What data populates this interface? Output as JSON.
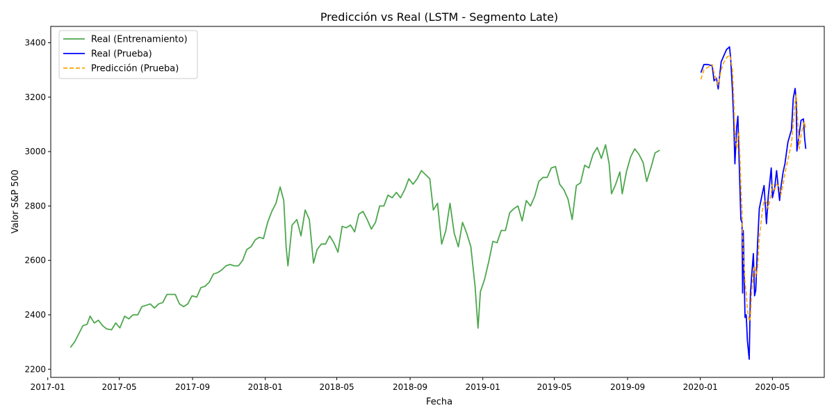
{
  "chart_data": {
    "type": "line",
    "title": "Predicción vs Real (LSTM - Segmento Late)",
    "xlabel": "Fecha",
    "ylabel": "Valor S&P 500",
    "xlim": [
      "2017-01-06",
      "2020-07-27"
    ],
    "ylim": [
      2170,
      3460
    ],
    "grid": false,
    "legend_position": "top-left",
    "x_ticks": [
      {
        "date": "2017-01-01",
        "label": "2017-01"
      },
      {
        "date": "2017-05-01",
        "label": "2017-05"
      },
      {
        "date": "2017-09-01",
        "label": "2017-09"
      },
      {
        "date": "2018-01-01",
        "label": "2018-01"
      },
      {
        "date": "2018-05-01",
        "label": "2018-05"
      },
      {
        "date": "2018-09-01",
        "label": "2018-09"
      },
      {
        "date": "2019-01-01",
        "label": "2019-01"
      },
      {
        "date": "2019-05-01",
        "label": "2019-05"
      },
      {
        "date": "2019-09-01",
        "label": "2019-09"
      },
      {
        "date": "2020-01-01",
        "label": "2020-01"
      },
      {
        "date": "2020-05-01",
        "label": "2020-05"
      }
    ],
    "y_ticks": [
      2200,
      2400,
      2600,
      2800,
      3000,
      3200,
      3400
    ],
    "series": [
      {
        "name": "Real (Entrenamiento)",
        "color": "#4ca64c",
        "dash": "solid",
        "points": [
          [
            "2017-02-08",
            2280
          ],
          [
            "2017-02-15",
            2300
          ],
          [
            "2017-02-22",
            2330
          ],
          [
            "2017-03-01",
            2360
          ],
          [
            "2017-03-08",
            2365
          ],
          [
            "2017-03-13",
            2395
          ],
          [
            "2017-03-20",
            2370
          ],
          [
            "2017-03-27",
            2380
          ],
          [
            "2017-04-03",
            2360
          ],
          [
            "2017-04-10",
            2348
          ],
          [
            "2017-04-18",
            2345
          ],
          [
            "2017-04-25",
            2370
          ],
          [
            "2017-05-02",
            2352
          ],
          [
            "2017-05-10",
            2395
          ],
          [
            "2017-05-17",
            2385
          ],
          [
            "2017-05-24",
            2400
          ],
          [
            "2017-06-01",
            2400
          ],
          [
            "2017-06-08",
            2430
          ],
          [
            "2017-06-15",
            2435
          ],
          [
            "2017-06-22",
            2440
          ],
          [
            "2017-06-29",
            2425
          ],
          [
            "2017-07-06",
            2440
          ],
          [
            "2017-07-13",
            2445
          ],
          [
            "2017-07-20",
            2475
          ],
          [
            "2017-07-27",
            2475
          ],
          [
            "2017-08-03",
            2475
          ],
          [
            "2017-08-10",
            2440
          ],
          [
            "2017-08-17",
            2430
          ],
          [
            "2017-08-24",
            2440
          ],
          [
            "2017-08-31",
            2470
          ],
          [
            "2017-09-08",
            2465
          ],
          [
            "2017-09-15",
            2500
          ],
          [
            "2017-09-22",
            2505
          ],
          [
            "2017-09-29",
            2520
          ],
          [
            "2017-10-06",
            2550
          ],
          [
            "2017-10-13",
            2555
          ],
          [
            "2017-10-20",
            2565
          ],
          [
            "2017-10-27",
            2580
          ],
          [
            "2017-11-03",
            2585
          ],
          [
            "2017-11-10",
            2580
          ],
          [
            "2017-11-17",
            2580
          ],
          [
            "2017-11-24",
            2600
          ],
          [
            "2017-12-01",
            2640
          ],
          [
            "2017-12-08",
            2650
          ],
          [
            "2017-12-15",
            2675
          ],
          [
            "2017-12-22",
            2685
          ],
          [
            "2017-12-29",
            2680
          ],
          [
            "2018-01-05",
            2740
          ],
          [
            "2018-01-12",
            2780
          ],
          [
            "2018-01-19",
            2810
          ],
          [
            "2018-01-26",
            2870
          ],
          [
            "2018-02-01",
            2820
          ],
          [
            "2018-02-05",
            2650
          ],
          [
            "2018-02-08",
            2580
          ],
          [
            "2018-02-15",
            2730
          ],
          [
            "2018-02-23",
            2750
          ],
          [
            "2018-03-02",
            2690
          ],
          [
            "2018-03-09",
            2785
          ],
          [
            "2018-03-16",
            2750
          ],
          [
            "2018-03-23",
            2590
          ],
          [
            "2018-03-29",
            2640
          ],
          [
            "2018-04-05",
            2660
          ],
          [
            "2018-04-12",
            2660
          ],
          [
            "2018-04-19",
            2690
          ],
          [
            "2018-04-26",
            2665
          ],
          [
            "2018-05-03",
            2630
          ],
          [
            "2018-05-10",
            2725
          ],
          [
            "2018-05-17",
            2720
          ],
          [
            "2018-05-24",
            2730
          ],
          [
            "2018-05-31",
            2705
          ],
          [
            "2018-06-07",
            2770
          ],
          [
            "2018-06-14",
            2780
          ],
          [
            "2018-06-21",
            2750
          ],
          [
            "2018-06-28",
            2715
          ],
          [
            "2018-07-05",
            2740
          ],
          [
            "2018-07-12",
            2800
          ],
          [
            "2018-07-19",
            2800
          ],
          [
            "2018-07-26",
            2840
          ],
          [
            "2018-08-02",
            2830
          ],
          [
            "2018-08-09",
            2850
          ],
          [
            "2018-08-16",
            2830
          ],
          [
            "2018-08-23",
            2860
          ],
          [
            "2018-08-30",
            2900
          ],
          [
            "2018-09-06",
            2880
          ],
          [
            "2018-09-13",
            2900
          ],
          [
            "2018-09-20",
            2930
          ],
          [
            "2018-09-27",
            2915
          ],
          [
            "2018-10-04",
            2900
          ],
          [
            "2018-10-10",
            2785
          ],
          [
            "2018-10-17",
            2810
          ],
          [
            "2018-10-24",
            2660
          ],
          [
            "2018-10-31",
            2710
          ],
          [
            "2018-11-07",
            2810
          ],
          [
            "2018-11-14",
            2700
          ],
          [
            "2018-11-21",
            2650
          ],
          [
            "2018-11-28",
            2740
          ],
          [
            "2018-12-05",
            2700
          ],
          [
            "2018-12-12",
            2650
          ],
          [
            "2018-12-19",
            2506
          ],
          [
            "2018-12-24",
            2351
          ],
          [
            "2018-12-28",
            2485
          ],
          [
            "2019-01-04",
            2530
          ],
          [
            "2019-01-11",
            2595
          ],
          [
            "2019-01-18",
            2670
          ],
          [
            "2019-01-25",
            2665
          ],
          [
            "2019-02-01",
            2710
          ],
          [
            "2019-02-08",
            2710
          ],
          [
            "2019-02-15",
            2775
          ],
          [
            "2019-02-22",
            2790
          ],
          [
            "2019-03-01",
            2800
          ],
          [
            "2019-03-08",
            2745
          ],
          [
            "2019-03-15",
            2820
          ],
          [
            "2019-03-22",
            2800
          ],
          [
            "2019-03-29",
            2835
          ],
          [
            "2019-04-05",
            2890
          ],
          [
            "2019-04-12",
            2905
          ],
          [
            "2019-04-19",
            2905
          ],
          [
            "2019-04-26",
            2940
          ],
          [
            "2019-05-03",
            2945
          ],
          [
            "2019-05-10",
            2880
          ],
          [
            "2019-05-17",
            2860
          ],
          [
            "2019-05-24",
            2825
          ],
          [
            "2019-05-31",
            2750
          ],
          [
            "2019-06-07",
            2875
          ],
          [
            "2019-06-14",
            2885
          ],
          [
            "2019-06-21",
            2950
          ],
          [
            "2019-06-28",
            2940
          ],
          [
            "2019-07-05",
            2990
          ],
          [
            "2019-07-12",
            3015
          ],
          [
            "2019-07-19",
            2975
          ],
          [
            "2019-07-26",
            3025
          ],
          [
            "2019-08-01",
            2955
          ],
          [
            "2019-08-05",
            2845
          ],
          [
            "2019-08-12",
            2880
          ],
          [
            "2019-08-19",
            2925
          ],
          [
            "2019-08-23",
            2845
          ],
          [
            "2019-08-30",
            2925
          ],
          [
            "2019-09-06",
            2980
          ],
          [
            "2019-09-13",
            3010
          ],
          [
            "2019-09-20",
            2990
          ],
          [
            "2019-09-27",
            2960
          ],
          [
            "2019-10-03",
            2890
          ],
          [
            "2019-10-10",
            2940
          ],
          [
            "2019-10-17",
            2995
          ],
          [
            "2019-10-25",
            3005
          ]
        ]
      },
      {
        "name": "Real (Prueba)",
        "color": "#0000ff",
        "dash": "solid",
        "points": [
          [
            "2020-01-02",
            3290
          ],
          [
            "2020-01-07",
            3320
          ],
          [
            "2020-01-14",
            3320
          ],
          [
            "2020-01-21",
            3315
          ],
          [
            "2020-01-24",
            3260
          ],
          [
            "2020-01-28",
            3270
          ],
          [
            "2020-01-31",
            3230
          ],
          [
            "2020-02-05",
            3330
          ],
          [
            "2020-02-10",
            3355
          ],
          [
            "2020-02-14",
            3375
          ],
          [
            "2020-02-19",
            3385
          ],
          [
            "2020-02-21",
            3340
          ],
          [
            "2020-02-24",
            3225
          ],
          [
            "2020-02-26",
            3115
          ],
          [
            "2020-02-28",
            2955
          ],
          [
            "2020-03-02",
            3090
          ],
          [
            "2020-03-04",
            3130
          ],
          [
            "2020-03-06",
            2975
          ],
          [
            "2020-03-09",
            2750
          ],
          [
            "2020-03-11",
            2740
          ],
          [
            "2020-03-12",
            2480
          ],
          [
            "2020-03-13",
            2710
          ],
          [
            "2020-03-16",
            2390
          ],
          [
            "2020-03-18",
            2400
          ],
          [
            "2020-03-20",
            2305
          ],
          [
            "2020-03-23",
            2237
          ],
          [
            "2020-03-25",
            2475
          ],
          [
            "2020-03-27",
            2540
          ],
          [
            "2020-03-30",
            2625
          ],
          [
            "2020-04-01",
            2470
          ],
          [
            "2020-04-03",
            2490
          ],
          [
            "2020-04-06",
            2660
          ],
          [
            "2020-04-09",
            2790
          ],
          [
            "2020-04-14",
            2845
          ],
          [
            "2020-04-17",
            2875
          ],
          [
            "2020-04-21",
            2735
          ],
          [
            "2020-04-24",
            2835
          ],
          [
            "2020-04-29",
            2940
          ],
          [
            "2020-05-01",
            2830
          ],
          [
            "2020-05-05",
            2870
          ],
          [
            "2020-05-08",
            2930
          ],
          [
            "2020-05-13",
            2820
          ],
          [
            "2020-05-15",
            2865
          ],
          [
            "2020-05-19",
            2925
          ],
          [
            "2020-05-22",
            2955
          ],
          [
            "2020-05-27",
            3035
          ],
          [
            "2020-06-02",
            3080
          ],
          [
            "2020-06-05",
            3195
          ],
          [
            "2020-06-08",
            3232
          ],
          [
            "2020-06-10",
            3190
          ],
          [
            "2020-06-11",
            3002
          ],
          [
            "2020-06-15",
            3065
          ],
          [
            "2020-06-18",
            3115
          ],
          [
            "2020-06-22",
            3120
          ],
          [
            "2020-06-24",
            3050
          ],
          [
            "2020-06-26",
            3010
          ]
        ]
      },
      {
        "name": "Predicción (Prueba)",
        "color": "#ffa500",
        "dash": "dashed",
        "points": [
          [
            "2020-01-02",
            3265
          ],
          [
            "2020-01-07",
            3300
          ],
          [
            "2020-01-14",
            3310
          ],
          [
            "2020-01-21",
            3320
          ],
          [
            "2020-01-24",
            3290
          ],
          [
            "2020-01-28",
            3260
          ],
          [
            "2020-01-31",
            3245
          ],
          [
            "2020-02-05",
            3300
          ],
          [
            "2020-02-10",
            3330
          ],
          [
            "2020-02-14",
            3345
          ],
          [
            "2020-02-19",
            3355
          ],
          [
            "2020-02-21",
            3340
          ],
          [
            "2020-02-24",
            3300
          ],
          [
            "2020-02-26",
            3200
          ],
          [
            "2020-02-28",
            3070
          ],
          [
            "2020-03-02",
            3010
          ],
          [
            "2020-03-04",
            3050
          ],
          [
            "2020-03-06",
            3070
          ],
          [
            "2020-03-09",
            2880
          ],
          [
            "2020-03-11",
            2780
          ],
          [
            "2020-03-12",
            2680
          ],
          [
            "2020-03-13",
            2620
          ],
          [
            "2020-03-16",
            2520
          ],
          [
            "2020-03-18",
            2480
          ],
          [
            "2020-03-20",
            2420
          ],
          [
            "2020-03-23",
            2375
          ],
          [
            "2020-03-25",
            2390
          ],
          [
            "2020-03-27",
            2480
          ],
          [
            "2020-03-30",
            2560
          ],
          [
            "2020-04-01",
            2580
          ],
          [
            "2020-04-03",
            2540
          ],
          [
            "2020-04-06",
            2570
          ],
          [
            "2020-04-09",
            2680
          ],
          [
            "2020-04-14",
            2780
          ],
          [
            "2020-04-17",
            2820
          ],
          [
            "2020-04-21",
            2815
          ],
          [
            "2020-04-24",
            2790
          ],
          [
            "2020-04-29",
            2850
          ],
          [
            "2020-05-01",
            2880
          ],
          [
            "2020-05-05",
            2860
          ],
          [
            "2020-05-08",
            2880
          ],
          [
            "2020-05-13",
            2870
          ],
          [
            "2020-05-15",
            2840
          ],
          [
            "2020-05-19",
            2880
          ],
          [
            "2020-05-22",
            2920
          ],
          [
            "2020-05-27",
            2970
          ],
          [
            "2020-06-02",
            3030
          ],
          [
            "2020-06-05",
            3100
          ],
          [
            "2020-06-08",
            3180
          ],
          [
            "2020-06-10",
            3210
          ],
          [
            "2020-06-11",
            3170
          ],
          [
            "2020-06-15",
            3010
          ],
          [
            "2020-06-18",
            3060
          ],
          [
            "2020-06-22",
            3100
          ],
          [
            "2020-06-24",
            3110
          ],
          [
            "2020-06-26",
            3080
          ]
        ]
      }
    ]
  }
}
